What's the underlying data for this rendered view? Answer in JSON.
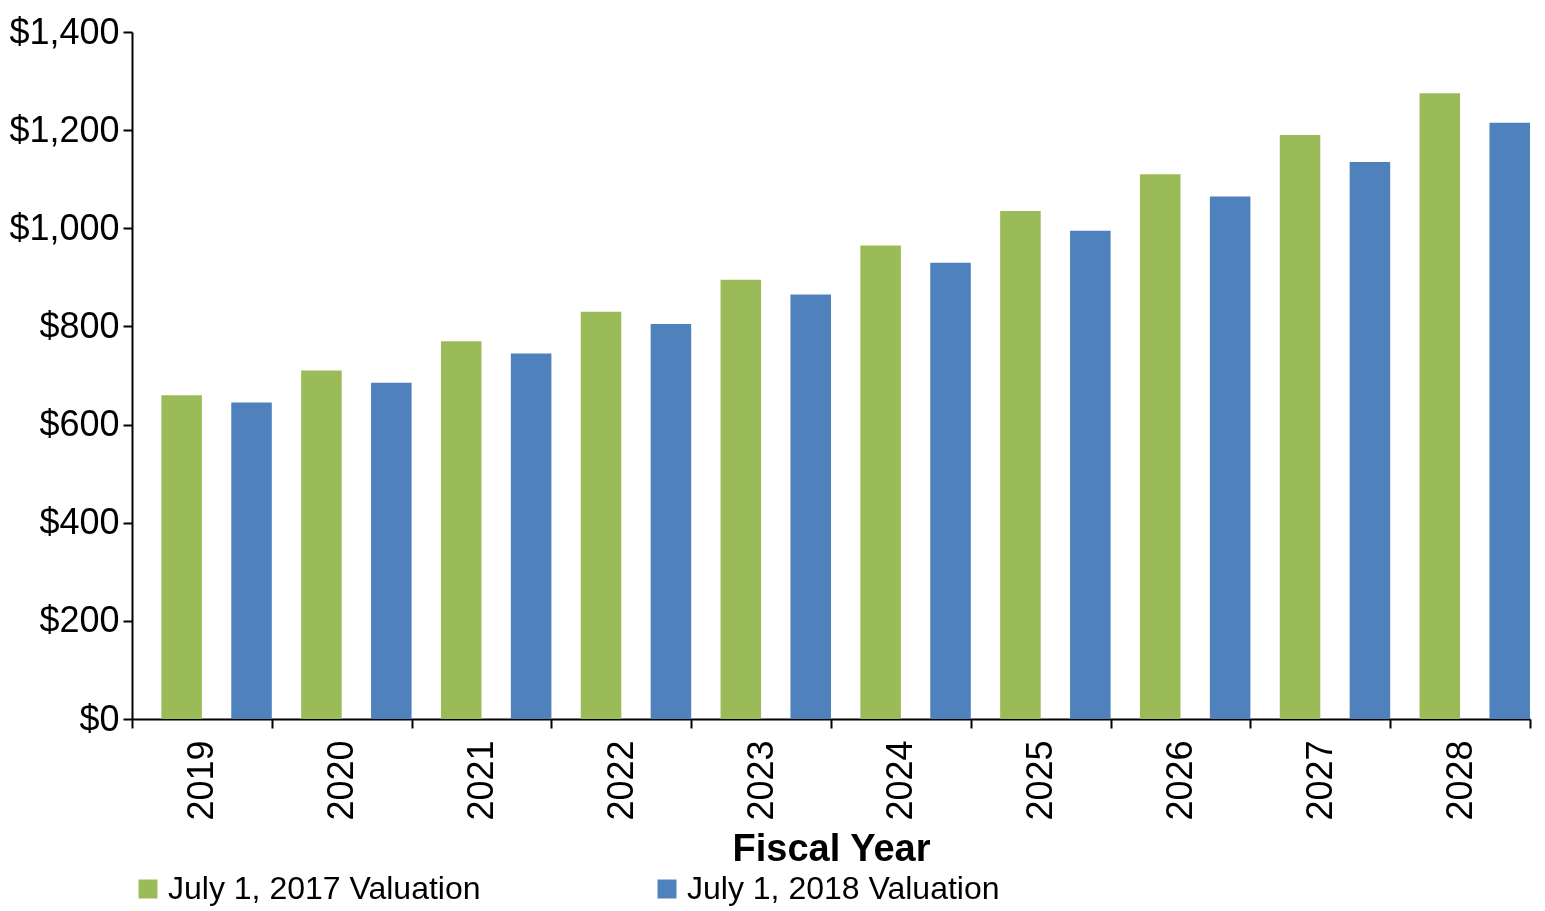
{
  "chart_data": {
    "type": "bar",
    "xlabel": "Fiscal Year",
    "categories": [
      "2019",
      "2020",
      "2021",
      "2022",
      "2023",
      "2024",
      "2025",
      "2026",
      "2027",
      "2028"
    ],
    "series": [
      {
        "name": "July 1, 2017 Valuation",
        "color": "#9bbb59",
        "values": [
          660,
          710,
          770,
          830,
          895,
          965,
          1035,
          1110,
          1190,
          1275
        ]
      },
      {
        "name": "July 1, 2018 Valuation",
        "color": "#4f81bd",
        "values": [
          645,
          685,
          745,
          805,
          865,
          930,
          995,
          1065,
          1135,
          1215
        ]
      }
    ],
    "ylim": [
      0,
      1400
    ],
    "yticks": [
      {
        "value": 0,
        "label": "$0"
      },
      {
        "value": 200,
        "label": "$200"
      },
      {
        "value": 400,
        "label": "$400"
      },
      {
        "value": 600,
        "label": "$600"
      },
      {
        "value": 800,
        "label": "$800"
      },
      {
        "value": 1000,
        "label": "$1,000"
      },
      {
        "value": 1200,
        "label": "$1,200"
      },
      {
        "value": 1400,
        "label": "$1,400"
      }
    ],
    "grid": false,
    "legend": "bottom"
  }
}
